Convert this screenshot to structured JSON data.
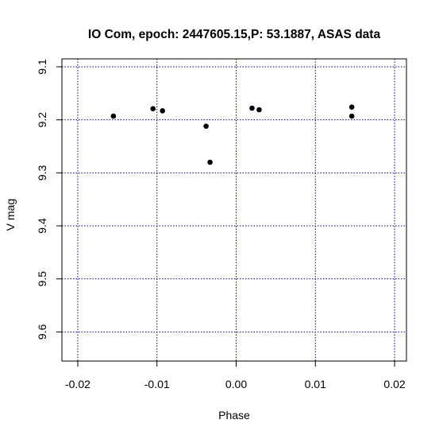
{
  "chart_data": {
    "type": "scatter",
    "title": "IO Com, epoch: 2447605.15,P: 53.1887, ASAS data",
    "xlabel": "Phase",
    "ylabel": "V mag",
    "xlim": [
      -0.022,
      0.0215
    ],
    "ylim": [
      9.655,
      9.085
    ],
    "y_reversed": true,
    "xticks": [
      -0.02,
      -0.01,
      0.0,
      0.01,
      0.02
    ],
    "xtick_labels": [
      "-0.02",
      "-0.01",
      "0.00",
      "0.01",
      "0.02"
    ],
    "yticks": [
      9.1,
      9.2,
      9.3,
      9.4,
      9.5,
      9.6
    ],
    "ytick_labels": [
      "9.1",
      "9.2",
      "9.3",
      "9.4",
      "9.5",
      "9.6"
    ],
    "grid": true,
    "grid_color": "#00008b",
    "marker_color": "#000000",
    "points": [
      {
        "x": -0.0155,
        "y": 9.193
      },
      {
        "x": -0.0105,
        "y": 9.179
      },
      {
        "x": -0.0093,
        "y": 9.183
      },
      {
        "x": -0.0038,
        "y": 9.212
      },
      {
        "x": -0.0033,
        "y": 9.28
      },
      {
        "x": 0.002,
        "y": 9.178
      },
      {
        "x": 0.0029,
        "y": 9.181
      },
      {
        "x": 0.0146,
        "y": 9.176
      },
      {
        "x": 0.0146,
        "y": 9.193
      }
    ]
  }
}
